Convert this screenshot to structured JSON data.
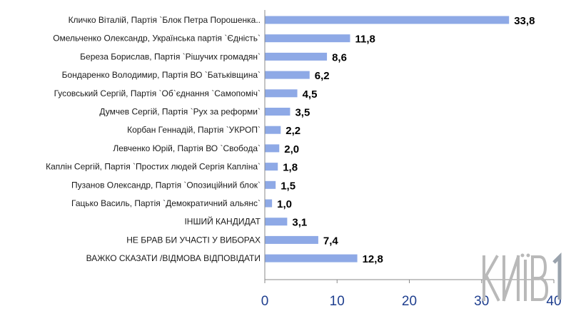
{
  "chart_data": {
    "type": "bar",
    "orientation": "horizontal",
    "categories": [
      "Кличко Віталій, Партія `Блок Петра Порошенка..",
      "Омельченко Олександр, Українська партія `Єдність`",
      "Береза Борислав, Партія `Рішучих громадян`",
      "Бондаренко Володимир, Партія ВО `Батьківщина`",
      "Гусовський Сергій, Партія `Об`єднання `Самопоміч`",
      "Думчев Сергій, Партія `Рух за реформи`",
      "Корбан Геннадій, Партія `УКРОП`",
      "Левченко Юрій, Партія ВО `Свобода`",
      "Каплін Сергій, Партія `Простих людей Сергія Капліна`",
      "Пузанов Олександр, Партія `Опозиційний блок`",
      "Гацько Василь, Партія `Демократичний альянс`",
      "ІНШИЙ КАНДИДАТ",
      "НЕ БРАВ БИ УЧАСТІ У ВИБОРАХ",
      "ВАЖКО СКАЗАТИ /ВІДМОВА ВІДПОВІДАТИ"
    ],
    "values": [
      33.8,
      11.8,
      8.6,
      6.2,
      4.5,
      3.5,
      2.2,
      2.0,
      1.8,
      1.5,
      1.0,
      3.1,
      7.4,
      12.8
    ],
    "value_labels": [
      "33,8",
      "11,8",
      "8,6",
      "6,2",
      "4,5",
      "3,5",
      "2,2",
      "2,0",
      "1,8",
      "1,5",
      "1,0",
      "3,1",
      "7,4",
      "12,8"
    ],
    "xlim": [
      0,
      40
    ],
    "xticks": [
      "0",
      "10",
      "20",
      "30",
      "40"
    ],
    "grid": false,
    "legend": false,
    "bar_color": "#8ea9e6",
    "tick_color": "#1f3f8f"
  },
  "logo": {
    "text": "КИЇВ 1",
    "color": "#b9b9b9"
  }
}
